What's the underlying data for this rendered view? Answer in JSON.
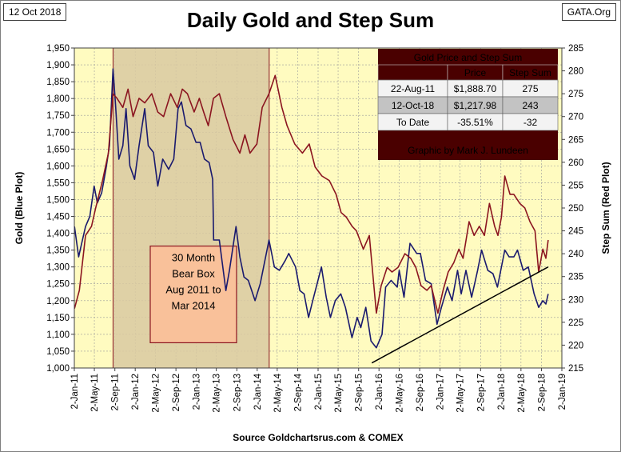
{
  "header": {
    "date_tag": "12 Oct 2018",
    "site_tag": "GATA.Org",
    "title": "Daily Gold and Step Sum"
  },
  "source": "Source Goldchartsrus.com & COMEX",
  "colors": {
    "plot_bg": "#fffbc0",
    "gold_line": "#1a1a6e",
    "step_line": "#8b1520",
    "bear_box_fill": "#d9c9a1",
    "bear_box_border": "#8b1520",
    "bear_label_fill": "#f9c19a",
    "table_dark": "#4a0000",
    "table_title_text": "#ffff00"
  },
  "bear_box": {
    "label": [
      "30 Month",
      "Bear Box",
      "Aug 2011 to",
      "Mar 2014"
    ],
    "x_start": "2011-08-22",
    "x_end": "2014-03-15"
  },
  "table": {
    "title": "Gold Price and Step Sum",
    "headers": [
      "",
      "Price",
      "Step Sum"
    ],
    "rows": [
      [
        "22-Aug-11",
        "$1,888.70",
        "275"
      ],
      [
        "12-Oct-18",
        "$1,217.98",
        "243"
      ],
      [
        "To Date",
        "-35.51%",
        "-32"
      ]
    ],
    "credit": "Graphic by Mark J. Lundeen"
  },
  "chart_data": {
    "type": "line",
    "xlabel": "",
    "ylabel": "Gold   (Blue Plot)",
    "y2label": "Step Sum   (Red Plot)",
    "x_range": [
      "2011-01-02",
      "2019-01-02"
    ],
    "ylim": [
      1000,
      1950
    ],
    "y2lim": [
      215,
      285
    ],
    "y_ticks": [
      "1,000",
      "1,050",
      "1,100",
      "1,150",
      "1,200",
      "1,250",
      "1,300",
      "1,350",
      "1,400",
      "1,450",
      "1,500",
      "1,550",
      "1,600",
      "1,650",
      "1,700",
      "1,750",
      "1,800",
      "1,850",
      "1,900",
      "1,950"
    ],
    "y2_ticks": [
      "215",
      "220",
      "225",
      "230",
      "235",
      "240",
      "245",
      "250",
      "255",
      "260",
      "265",
      "270",
      "275",
      "280",
      "285"
    ],
    "x_ticks": [
      {
        "label": "2-Jan-11",
        "date": "2011-01-02"
      },
      {
        "label": "2-May-11",
        "date": "2011-05-02"
      },
      {
        "label": "2-Sep-11",
        "date": "2011-09-02"
      },
      {
        "label": "2-Jan-12",
        "date": "2012-01-02"
      },
      {
        "label": "2-May-12",
        "date": "2012-05-02"
      },
      {
        "label": "2-Sep-12",
        "date": "2012-09-02"
      },
      {
        "label": "2-Jan-13",
        "date": "2013-01-02"
      },
      {
        "label": "2-May-13",
        "date": "2013-05-02"
      },
      {
        "label": "2-Sep-13",
        "date": "2013-09-02"
      },
      {
        "label": "2-Jan-14",
        "date": "2014-01-02"
      },
      {
        "label": "2-May-14",
        "date": "2014-05-02"
      },
      {
        "label": "2-Sep-14",
        "date": "2014-09-02"
      },
      {
        "label": "2-Jan-15",
        "date": "2015-01-02"
      },
      {
        "label": "2-May-15",
        "date": "2015-05-02"
      },
      {
        "label": "2-Sep-15",
        "date": "2015-09-02"
      },
      {
        "label": "2-Jan-16",
        "date": "2016-01-02"
      },
      {
        "label": "2-May-16",
        "date": "2016-05-02"
      },
      {
        "label": "2-Sep-16",
        "date": "2016-09-02"
      },
      {
        "label": "2-Jan-17",
        "date": "2017-01-02"
      },
      {
        "label": "2-May-17",
        "date": "2017-05-02"
      },
      {
        "label": "2-Sep-17",
        "date": "2017-09-02"
      },
      {
        "label": "2-Jan-18",
        "date": "2018-01-02"
      },
      {
        "label": "2-May-18",
        "date": "2018-05-02"
      },
      {
        "label": "2-Sep-18",
        "date": "2018-09-02"
      },
      {
        "label": "2-Jan-19",
        "date": "2019-01-02"
      }
    ],
    "series": [
      {
        "axis": "left",
        "x": [
          "2011-01-03",
          "2011-01-28",
          "2011-02-15",
          "2011-03-10",
          "2011-04-05",
          "2011-05-01",
          "2011-05-20",
          "2011-06-15",
          "2011-07-10",
          "2011-08-01",
          "2011-08-22",
          "2011-09-06",
          "2011-09-26",
          "2011-10-20",
          "2011-11-08",
          "2011-12-01",
          "2011-12-29",
          "2012-01-25",
          "2012-02-28",
          "2012-03-20",
          "2012-04-20",
          "2012-05-16",
          "2012-06-15",
          "2012-07-20",
          "2012-08-20",
          "2012-09-15",
          "2012-10-05",
          "2012-11-01",
          "2012-12-01",
          "2012-12-31",
          "2013-01-25",
          "2013-02-20",
          "2013-03-20",
          "2013-04-10",
          "2013-04-16",
          "2013-05-20",
          "2013-06-28",
          "2013-07-20",
          "2013-08-28",
          "2013-09-20",
          "2013-10-15",
          "2013-11-10",
          "2013-12-20",
          "2014-01-20",
          "2014-03-14",
          "2014-04-15",
          "2014-05-15",
          "2014-06-20",
          "2014-07-10",
          "2014-08-20",
          "2014-09-15",
          "2014-10-10",
          "2014-11-06",
          "2014-12-01",
          "2015-01-22",
          "2015-02-20",
          "2015-03-17",
          "2015-04-15",
          "2015-05-18",
          "2015-06-15",
          "2015-07-24",
          "2015-08-24",
          "2015-09-15",
          "2015-10-15",
          "2015-11-15",
          "2015-12-17",
          "2016-01-20",
          "2016-02-11",
          "2016-03-15",
          "2016-04-20",
          "2016-05-02",
          "2016-05-31",
          "2016-07-06",
          "2016-08-15",
          "2016-09-06",
          "2016-10-07",
          "2016-11-10",
          "2016-12-15",
          "2017-01-10",
          "2017-02-15",
          "2017-03-15",
          "2017-04-17",
          "2017-05-09",
          "2017-06-06",
          "2017-07-10",
          "2017-08-15",
          "2017-09-08",
          "2017-10-15",
          "2017-11-15",
          "2017-12-12",
          "2018-01-25",
          "2018-02-20",
          "2018-03-20",
          "2018-04-11",
          "2018-05-15",
          "2018-06-15",
          "2018-07-20",
          "2018-08-16",
          "2018-09-10",
          "2018-09-28",
          "2018-10-12"
        ],
        "values": [
          1420,
          1330,
          1370,
          1420,
          1450,
          1540,
          1490,
          1520,
          1590,
          1660,
          1888,
          1780,
          1620,
          1660,
          1770,
          1600,
          1560,
          1660,
          1770,
          1660,
          1640,
          1540,
          1620,
          1590,
          1620,
          1770,
          1790,
          1720,
          1710,
          1670,
          1670,
          1620,
          1610,
          1560,
          1380,
          1380,
          1230,
          1290,
          1420,
          1330,
          1270,
          1260,
          1200,
          1250,
          1380,
          1300,
          1290,
          1320,
          1340,
          1300,
          1230,
          1220,
          1150,
          1200,
          1300,
          1210,
          1150,
          1200,
          1220,
          1180,
          1090,
          1150,
          1120,
          1180,
          1080,
          1060,
          1100,
          1240,
          1260,
          1240,
          1290,
          1210,
          1370,
          1340,
          1340,
          1260,
          1250,
          1130,
          1180,
          1240,
          1200,
          1290,
          1220,
          1290,
          1210,
          1290,
          1350,
          1290,
          1280,
          1240,
          1350,
          1330,
          1330,
          1350,
          1290,
          1300,
          1220,
          1180,
          1200,
          1190,
          1220
        ]
      },
      {
        "axis": "right",
        "x": [
          "2011-01-03",
          "2011-02-01",
          "2011-03-10",
          "2011-04-15",
          "2011-05-10",
          "2011-06-20",
          "2011-07-25",
          "2011-08-22",
          "2011-09-15",
          "2011-10-20",
          "2011-11-20",
          "2011-12-20",
          "2012-01-25",
          "2012-02-28",
          "2012-04-10",
          "2012-05-16",
          "2012-06-20",
          "2012-08-01",
          "2012-09-10",
          "2012-10-10",
          "2012-11-10",
          "2012-12-20",
          "2013-01-20",
          "2013-02-15",
          "2013-03-15",
          "2013-04-15",
          "2013-05-20",
          "2013-06-28",
          "2013-08-10",
          "2013-09-20",
          "2013-10-20",
          "2013-11-20",
          "2013-12-31",
          "2014-02-01",
          "2014-03-14",
          "2014-04-20",
          "2014-05-30",
          "2014-06-30",
          "2014-08-15",
          "2014-09-30",
          "2014-11-10",
          "2014-12-15",
          "2015-01-25",
          "2015-03-10",
          "2015-04-20",
          "2015-05-20",
          "2015-06-20",
          "2015-07-25",
          "2015-08-20",
          "2015-09-30",
          "2015-11-05",
          "2015-12-17",
          "2016-01-15",
          "2016-02-20",
          "2016-03-20",
          "2016-04-25",
          "2016-06-05",
          "2016-07-10",
          "2016-08-10",
          "2016-09-10",
          "2016-10-15",
          "2016-11-10",
          "2016-12-20",
          "2017-01-20",
          "2017-02-20",
          "2017-03-25",
          "2017-04-25",
          "2017-05-20",
          "2017-06-25",
          "2017-07-25",
          "2017-08-25",
          "2017-09-25",
          "2017-10-25",
          "2017-11-25",
          "2017-12-15",
          "2018-01-05",
          "2018-01-25",
          "2018-02-25",
          "2018-03-20",
          "2018-04-25",
          "2018-05-25",
          "2018-06-25",
          "2018-07-25",
          "2018-08-16",
          "2018-09-10",
          "2018-09-28",
          "2018-10-12"
        ],
        "values": [
          228,
          232,
          244,
          246,
          250,
          256,
          262,
          275,
          274,
          272,
          276,
          270,
          274,
          273,
          275,
          271,
          270,
          275,
          272,
          276,
          275,
          271,
          274,
          271,
          268,
          274,
          275,
          270,
          265,
          262,
          266,
          262,
          264,
          272,
          275,
          279,
          272,
          268,
          264,
          262,
          264,
          259,
          257,
          256,
          253,
          249,
          248,
          246,
          245,
          241,
          244,
          227,
          233,
          237,
          236,
          237,
          240,
          239,
          237,
          233,
          232,
          233,
          227,
          232,
          236,
          238,
          241,
          239,
          247,
          244,
          246,
          244,
          251,
          246,
          244,
          248,
          257,
          253,
          253,
          251,
          250,
          247,
          245,
          236,
          241,
          239,
          243
        ]
      }
    ],
    "trend_line": {
      "x": [
        "2015-11-20",
        "2018-10-12"
      ],
      "y": [
        1015,
        1300
      ]
    }
  }
}
